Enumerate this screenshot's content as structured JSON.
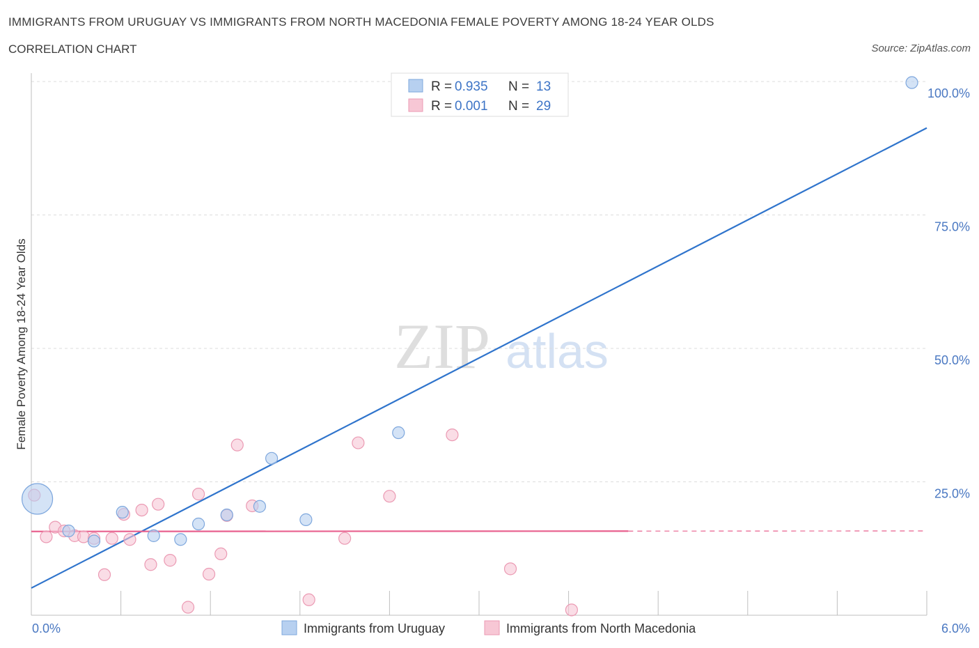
{
  "header": {
    "title": "IMMIGRANTS FROM URUGUAY VS IMMIGRANTS FROM NORTH MACEDONIA FEMALE POVERTY AMONG 18-24 YEAR OLDS",
    "subtitle": "CORRELATION CHART",
    "source": "Source: ZipAtlas.com"
  },
  "watermark": {
    "zip": "ZIP",
    "atlas": "atlas"
  },
  "colors": {
    "uruguay_fill": "#b7d0f0",
    "uruguay_stroke": "#7ea7dd",
    "uruguay_line": "#2f74cc",
    "macedonia_fill": "#f7c7d5",
    "macedonia_stroke": "#eb9ab3",
    "macedonia_line": "#e8608e",
    "grid": "#dcdcdc",
    "tick_text": "#4a78c2"
  },
  "legend": {
    "rows": [
      {
        "r_label": "R = ",
        "r_value": "0.935",
        "n_label": "N = ",
        "n_value": "13"
      },
      {
        "r_label": "R = ",
        "r_value": "0.001",
        "n_label": "N = ",
        "n_value": "29"
      }
    ]
  },
  "chart_data": {
    "type": "scatter",
    "title": "IMMIGRANTS FROM URUGUAY VS IMMIGRANTS FROM NORTH MACEDONIA FEMALE POVERTY AMONG 18-24 YEAR OLDS",
    "xlabel": "",
    "ylabel": "Female Poverty Among 18-24 Year Olds",
    "xlim": [
      0,
      6
    ],
    "ylim": [
      0,
      100
    ],
    "x_tick_labels": {
      "left": "0.0%",
      "right": "6.0%"
    },
    "y_ticks": [
      {
        "value": 100,
        "label": "100.0%"
      },
      {
        "value": 75,
        "label": "75.0%"
      },
      {
        "value": 50,
        "label": "50.0%"
      },
      {
        "value": 25,
        "label": "25.0%"
      }
    ],
    "series": [
      {
        "name": "Immigrants from Uruguay",
        "key": "uruguay",
        "R": 0.935,
        "N": 13,
        "points": [
          {
            "x": 0.04,
            "y": 21.8,
            "big": true
          },
          {
            "x": 0.25,
            "y": 15.8
          },
          {
            "x": 0.42,
            "y": 13.9
          },
          {
            "x": 0.61,
            "y": 19.3
          },
          {
            "x": 0.82,
            "y": 14.9
          },
          {
            "x": 1.0,
            "y": 14.2
          },
          {
            "x": 1.12,
            "y": 17.1
          },
          {
            "x": 1.31,
            "y": 18.8
          },
          {
            "x": 1.53,
            "y": 20.4
          },
          {
            "x": 1.61,
            "y": 29.4
          },
          {
            "x": 1.84,
            "y": 17.9
          },
          {
            "x": 2.46,
            "y": 34.2
          },
          {
            "x": 5.9,
            "y": 99.8
          }
        ],
        "trend": {
          "x0": 0,
          "y0": 5.1,
          "x1": 6.0,
          "y1": 91.3,
          "dashed_from": null
        }
      },
      {
        "name": "Immigrants from North Macedonia",
        "key": "macedonia",
        "R": 0.001,
        "N": 29,
        "points": [
          {
            "x": 0.02,
            "y": 22.5
          },
          {
            "x": 0.1,
            "y": 14.7
          },
          {
            "x": 0.16,
            "y": 16.5
          },
          {
            "x": 0.22,
            "y": 15.8
          },
          {
            "x": 0.29,
            "y": 14.9
          },
          {
            "x": 0.35,
            "y": 14.7
          },
          {
            "x": 0.42,
            "y": 14.4
          },
          {
            "x": 0.49,
            "y": 7.6
          },
          {
            "x": 0.54,
            "y": 14.4
          },
          {
            "x": 0.62,
            "y": 18.9
          },
          {
            "x": 0.66,
            "y": 14.2
          },
          {
            "x": 0.74,
            "y": 19.7
          },
          {
            "x": 0.8,
            "y": 9.5
          },
          {
            "x": 0.85,
            "y": 20.8
          },
          {
            "x": 0.93,
            "y": 10.3
          },
          {
            "x": 1.05,
            "y": 1.5
          },
          {
            "x": 1.12,
            "y": 22.7
          },
          {
            "x": 1.19,
            "y": 7.7
          },
          {
            "x": 1.27,
            "y": 11.5
          },
          {
            "x": 1.31,
            "y": 18.7
          },
          {
            "x": 1.38,
            "y": 31.9
          },
          {
            "x": 1.48,
            "y": 20.5
          },
          {
            "x": 1.86,
            "y": 2.9
          },
          {
            "x": 2.1,
            "y": 14.4
          },
          {
            "x": 2.19,
            "y": 32.3
          },
          {
            "x": 2.4,
            "y": 22.3
          },
          {
            "x": 2.82,
            "y": 33.8
          },
          {
            "x": 3.21,
            "y": 8.7
          },
          {
            "x": 3.62,
            "y": 1.0
          }
        ],
        "trend": {
          "x0": 0,
          "y0": 15.7,
          "x1": 6.0,
          "y1": 15.8,
          "dashed_from": 4.0
        }
      }
    ]
  }
}
